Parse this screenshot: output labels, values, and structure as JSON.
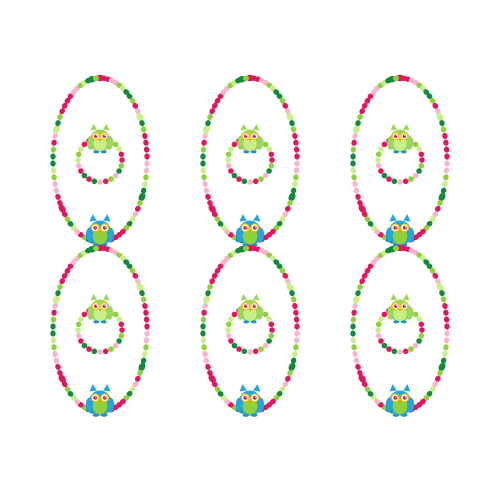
{
  "product": {
    "subject": "owl-necklace-bracelet-set",
    "sets_count": 6,
    "each_set_contains": [
      "necklace",
      "bracelet"
    ]
  },
  "colors": {
    "background": "#ffffff",
    "bead_pink": "#e2175f",
    "bead_light_pink": "#f7b7c8",
    "bead_lime": "#8fd13a",
    "bead_light_green": "#c9ef8a",
    "bead_dark_green": "#138a3c",
    "owl_body": "#9bd75c",
    "owl_belly": "#c8ee88",
    "owl_eye_ring": "#f2c200",
    "owl_eye_white": "#ffffff",
    "owl_pupil": "#d01a4b",
    "owl_beak": "#f09a00",
    "owl_feet": "#1f8fd6",
    "necklace_owl_body": "#26a6e0",
    "necklace_owl_face": "#8fd13a"
  }
}
